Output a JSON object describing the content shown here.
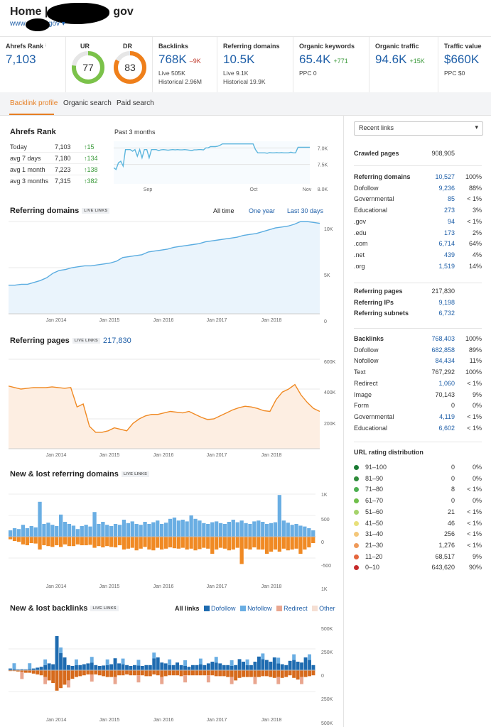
{
  "header": {
    "title": "Home |",
    "title_suffix": "gov",
    "url": "www.",
    "url_suffix": "gov ▾"
  },
  "metrics": [
    {
      "label": "Ahrefs Rank",
      "value": "7,103"
    },
    {
      "label": "UR",
      "value": "77",
      "score": 77,
      "color": "#7bc24a"
    },
    {
      "label": "DR",
      "value": "83",
      "score": 83,
      "color": "#ef7f1a"
    },
    {
      "label": "Backlinks",
      "value": "768K",
      "delta": "–9K",
      "sub1": "Live 505K",
      "sub2": "Historical 2.96M"
    },
    {
      "label": "Referring domains",
      "value": "10.5K",
      "sub1": "Live 9.1K",
      "sub2": "Historical 19.9K"
    },
    {
      "label": "Organic keywords",
      "value": "65.4K",
      "delta": "+771",
      "sub1": "PPC 0"
    },
    {
      "label": "Organic traffic",
      "value": "94.6K",
      "delta": "+15K"
    },
    {
      "label": "Traffic value",
      "value": "$660K",
      "sub1": "PPC $0"
    }
  ],
  "tabs": [
    "Backlink profile",
    "Organic search",
    "Paid search"
  ],
  "ahrefs_rank": {
    "title": "Ahrefs Rank",
    "rows": [
      {
        "label": "Today",
        "value": "7,103",
        "delta": "↑15"
      },
      {
        "label": "avg 7 days",
        "value": "7,180",
        "delta": "↑134"
      },
      {
        "label": "avg 1 month",
        "value": "7,223",
        "delta": "↑138"
      },
      {
        "label": "avg 3 months",
        "value": "7,315",
        "delta": "↑382"
      }
    ],
    "period_label": "Past 3 months"
  },
  "live_badge": "LIVE LINKS",
  "sections": {
    "ref_domains": "Referring domains",
    "ref_pages": "Referring pages",
    "ref_pages_value": "217,830",
    "new_lost_domains": "New & lost referring domains",
    "new_lost_backlinks": "New & lost backlinks"
  },
  "periods": [
    "All time",
    "One year",
    "Last 30 days"
  ],
  "backlink_legend": {
    "all": "All links",
    "items": [
      {
        "label": "Dofollow",
        "color": "#1e6bb0"
      },
      {
        "label": "Nofollow",
        "color": "#6aaee3"
      },
      {
        "label": "Redirect",
        "color": "#e9a68f"
      },
      {
        "label": "Other",
        "color": "#f5dfd3"
      }
    ]
  },
  "right": {
    "select": "Recent links",
    "crawled": {
      "label": "Crawled pages",
      "value": "908,905"
    },
    "ref_domains": [
      {
        "label": "Referring domains",
        "value": "10,527",
        "pct": "100%",
        "bold": true
      },
      {
        "label": "Dofollow",
        "value": "9,236",
        "pct": "88%"
      },
      {
        "label": "Governmental",
        "value": "85",
        "pct": "< 1%"
      },
      {
        "label": "Educational",
        "value": "273",
        "pct": "3%"
      },
      {
        "label": ".gov",
        "value": "94",
        "pct": "< 1%"
      },
      {
        "label": ".edu",
        "value": "173",
        "pct": "2%"
      },
      {
        "label": ".com",
        "value": "6,714",
        "pct": "64%"
      },
      {
        "label": ".net",
        "value": "439",
        "pct": "4%"
      },
      {
        "label": ".org",
        "value": "1,519",
        "pct": "14%"
      }
    ],
    "ref_pages": [
      {
        "label": "Referring pages",
        "value": "217,830",
        "dark": true
      },
      {
        "label": "Referring IPs",
        "value": "9,198"
      },
      {
        "label": "Referring subnets",
        "value": "6,732"
      }
    ],
    "backlinks": [
      {
        "label": "Backlinks",
        "value": "768,403",
        "pct": "100%",
        "bold": true
      },
      {
        "label": "Dofollow",
        "value": "682,858",
        "pct": "89%"
      },
      {
        "label": "Nofollow",
        "value": "84,434",
        "pct": "11%"
      },
      {
        "label": "Text",
        "value": "767,292",
        "pct": "100%",
        "dark": true
      },
      {
        "label": "Redirect",
        "value": "1,060",
        "pct": "< 1%"
      },
      {
        "label": "Image",
        "value": "70,143",
        "pct": "9%",
        "dark": true
      },
      {
        "label": "Form",
        "value": "0",
        "pct": "0%",
        "dark": true
      },
      {
        "label": "Governmental",
        "value": "4,119",
        "pct": "< 1%"
      },
      {
        "label": "Educational",
        "value": "6,602",
        "pct": "< 1%"
      }
    ],
    "url_rating_title": "URL rating distribution",
    "url_rating": [
      {
        "label": "91–100",
        "value": "0",
        "pct": "0%",
        "color": "#1a7a33"
      },
      {
        "label": "81–90",
        "value": "0",
        "pct": "0%",
        "color": "#2e8b3a"
      },
      {
        "label": "71–80",
        "value": "8",
        "pct": "< 1%",
        "color": "#4caf50"
      },
      {
        "label": "61–70",
        "value": "0",
        "pct": "0%",
        "color": "#6fbf4a"
      },
      {
        "label": "51–60",
        "value": "21",
        "pct": "< 1%",
        "color": "#a5d36b"
      },
      {
        "label": "41–50",
        "value": "46",
        "pct": "< 1%",
        "color": "#e8e07a"
      },
      {
        "label": "31–40",
        "value": "256",
        "pct": "< 1%",
        "color": "#f4c77a"
      },
      {
        "label": "21–30",
        "value": "1,276",
        "pct": "< 1%",
        "color": "#ef9a5a"
      },
      {
        "label": "11–20",
        "value": "68,517",
        "pct": "9%",
        "color": "#e5663c"
      },
      {
        "label": "0–10",
        "value": "643,620",
        "pct": "90%",
        "color": "#c62a2a"
      }
    ]
  },
  "chart_data": [
    {
      "type": "line",
      "name": "ahrefs-rank-3m",
      "x_ticks": [
        "Sep",
        "Oct",
        "Nov"
      ],
      "y_ticks": [
        "7.0K",
        "7.5K",
        "8.0K"
      ],
      "ylim": [
        8000,
        6800
      ],
      "values": [
        7600,
        7650,
        7450,
        7400,
        7550,
        7050,
        7050,
        7050,
        7100,
        7050,
        7250,
        7050,
        7300,
        7050,
        7050,
        7300,
        7050,
        7050,
        7050,
        7080,
        7060,
        7050,
        7060,
        7070,
        7060,
        7050,
        7060,
        7050,
        7060,
        7060,
        7050,
        7060,
        7070,
        7080,
        7060,
        7060,
        7050,
        7050,
        7060,
        7000,
        7000,
        6960,
        6960,
        6960,
        6950,
        6920,
        6880,
        6880,
        6880,
        6880,
        6880,
        6880,
        6880,
        6880,
        6880,
        6880,
        6880,
        6880,
        6880,
        6880,
        7050,
        7150,
        7150,
        7150,
        7150,
        7160,
        7140,
        7150,
        7150,
        7140,
        7150,
        7140,
        7150,
        7150,
        7150,
        7130,
        7150,
        7150,
        6980,
        6980,
        6980,
        6980,
        6980,
        6980
      ],
      "color": "#5bb5dd"
    },
    {
      "type": "area",
      "name": "referring-domains",
      "x_ticks": [
        "Jan 2014",
        "Jan 2015",
        "Jan 2016",
        "Jan 2017",
        "Jan 2018"
      ],
      "y_ticks": [
        "10K",
        "5K",
        "0"
      ],
      "ylim": [
        0,
        10000
      ],
      "values": [
        3100,
        3100,
        3200,
        3200,
        3400,
        3600,
        3900,
        4400,
        4700,
        4800,
        5000,
        5100,
        5200,
        5200,
        5300,
        5400,
        5500,
        5700,
        6100,
        6200,
        6300,
        6400,
        6700,
        6800,
        6900,
        7000,
        7200,
        7300,
        7400,
        7500,
        7600,
        7800,
        7900,
        8000,
        8100,
        8200,
        8300,
        8500,
        8600,
        8700,
        8900,
        9100,
        9300,
        9400,
        9500,
        9700,
        10000,
        10000,
        9900,
        9800
      ],
      "color": "#5aace0",
      "fill": "#eaf4fc"
    },
    {
      "type": "area",
      "name": "referring-pages",
      "x_ticks": [
        "Jan 2014",
        "Jan 2015",
        "Jan 2016",
        "Jan 2017",
        "Jan 2018"
      ],
      "y_ticks": [
        "600K",
        "400K",
        "200K"
      ],
      "ylim": [
        0,
        600000
      ],
      "values": [
        420000,
        410000,
        400000,
        405000,
        410000,
        410000,
        410000,
        415000,
        410000,
        405000,
        410000,
        280000,
        300000,
        150000,
        110000,
        110000,
        120000,
        140000,
        130000,
        120000,
        170000,
        200000,
        220000,
        230000,
        230000,
        240000,
        250000,
        245000,
        240000,
        250000,
        230000,
        210000,
        195000,
        200000,
        220000,
        240000,
        260000,
        275000,
        285000,
        280000,
        270000,
        255000,
        250000,
        330000,
        380000,
        400000,
        430000,
        360000,
        310000,
        270000,
        250000
      ],
      "color": "#f08a24",
      "fill": "#fdeee2"
    },
    {
      "type": "bar",
      "name": "new-lost-referring-domains",
      "x_ticks": [
        "Jan 2014",
        "Jan 2015",
        "Jan 2016",
        "Jan 2017",
        "Jan 2018"
      ],
      "y_ticks": [
        "1K",
        "500",
        "0",
        "-500",
        "1K"
      ],
      "ylim": [
        -1000,
        1000
      ],
      "new": [
        150,
        200,
        180,
        280,
        200,
        250,
        220,
        820,
        300,
        330,
        280,
        250,
        520,
        350,
        300,
        260,
        180,
        250,
        280,
        240,
        580,
        300,
        350,
        280,
        250,
        300,
        280,
        400,
        320,
        360,
        300,
        280,
        350,
        300,
        340,
        380,
        300,
        330,
        420,
        450,
        380,
        400,
        360,
        500,
        420,
        380,
        320,
        300,
        340,
        360,
        320,
        300,
        350,
        400,
        340,
        380,
        320,
        300,
        360,
        380,
        350,
        300,
        320,
        340,
        980,
        380,
        330,
        280,
        300,
        260,
        240,
        200,
        150
      ],
      "lost": [
        -60,
        -100,
        -120,
        -180,
        -200,
        -150,
        -160,
        -300,
        -200,
        -220,
        -240,
        -200,
        -240,
        -180,
        -220,
        -220,
        -180,
        -200,
        -200,
        -190,
        -260,
        -220,
        -250,
        -220,
        -240,
        -250,
        -200,
        -300,
        -280,
        -260,
        -320,
        -280,
        -240,
        -300,
        -320,
        -260,
        -300,
        -280,
        -250,
        -270,
        -280,
        -260,
        -300,
        -280,
        -320,
        -290,
        -260,
        -280,
        -400,
        -300,
        -260,
        -280,
        -320,
        -300,
        -260,
        -640,
        -280,
        -300,
        -250,
        -300,
        -300,
        -400,
        -350,
        -300,
        -350,
        -280,
        -320,
        -300,
        -280,
        -400,
        -300,
        -250,
        -150
      ],
      "new_color": "#6aaee3",
      "lost_color": "#f08a24"
    },
    {
      "type": "bar",
      "name": "new-lost-backlinks",
      "x_ticks": [
        "Jan 2014",
        "Jan 2015",
        "Jan 2016",
        "Jan 2017",
        "Jan 2018"
      ],
      "y_ticks": [
        "500K",
        "250K",
        "0",
        "250K",
        "500K"
      ],
      "ylim": [
        -500000,
        500000
      ],
      "new": [
        20000,
        15000,
        10000,
        12000,
        10000,
        15000,
        20000,
        30000,
        40000,
        60000,
        80000,
        70000,
        400000,
        200000,
        150000,
        60000,
        50000,
        60000,
        60000,
        70000,
        80000,
        90000,
        60000,
        50000,
        55000,
        60000,
        70000,
        140000,
        80000,
        70000,
        60000,
        50000,
        60000,
        55000,
        50000,
        60000,
        60000,
        140000,
        150000,
        90000,
        80000,
        60000,
        60000,
        90000,
        60000,
        50000,
        40000,
        60000,
        60000,
        70000,
        60000,
        80000,
        100000,
        90000,
        80000,
        60000,
        60000,
        50000,
        60000,
        130000,
        100000,
        60000,
        60000,
        100000,
        160000,
        130000,
        120000,
        100000,
        150000,
        80000,
        70000,
        60000,
        110000,
        120000,
        100000,
        90000,
        150000,
        120000,
        60000
      ],
      "lost": [
        -10000,
        -10000,
        -15000,
        -20000,
        -30000,
        -30000,
        -40000,
        -50000,
        -60000,
        -80000,
        -120000,
        -150000,
        -240000,
        -210000,
        -170000,
        -120000,
        -100000,
        -80000,
        -70000,
        -60000,
        -50000,
        -50000,
        -50000,
        -60000,
        -70000,
        -80000,
        -80000,
        -80000,
        -60000,
        -60000,
        -50000,
        -60000,
        -60000,
        -60000,
        -60000,
        -70000,
        -70000,
        -50000,
        -60000,
        -80000,
        -70000,
        -60000,
        -60000,
        -60000,
        -70000,
        -60000,
        -60000,
        -60000,
        -60000,
        -60000,
        -60000,
        -60000,
        -60000,
        -70000,
        -70000,
        -70000,
        -80000,
        -80000,
        -120000,
        -90000,
        -80000,
        -80000,
        -80000,
        -80000,
        -80000,
        -70000,
        -70000,
        -80000,
        -90000,
        -80000,
        -90000,
        -80000,
        -60000,
        -90000,
        -110000,
        -80000,
        -80000,
        -70000,
        -60000
      ],
      "new_color": "#1e6bb0",
      "lost_color": "#d66a1c"
    }
  ]
}
